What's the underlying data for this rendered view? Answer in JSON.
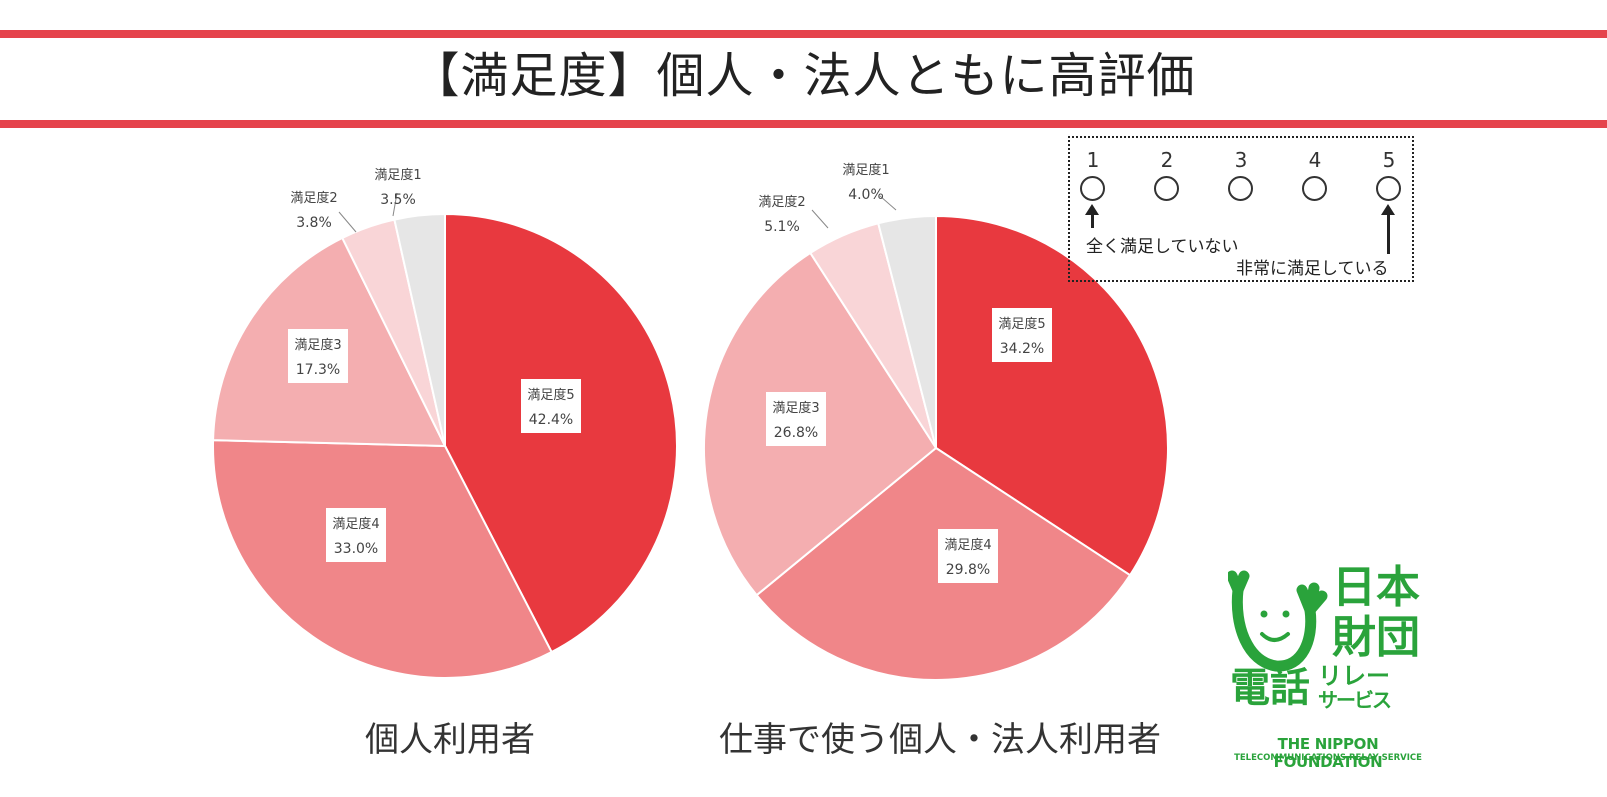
{
  "title": "【満足度】個人・法人ともに高評価",
  "chart_data": [
    {
      "type": "pie",
      "title": "個人利用者",
      "start_angle": "12 o'clock, clockwise",
      "slices": [
        {
          "label": "満足度5",
          "value": 42.4,
          "value_label": "42.4%",
          "color": "#e8393f"
        },
        {
          "label": "満足度4",
          "value": 33.0,
          "value_label": "33.0%",
          "color": "#f08689"
        },
        {
          "label": "満足度3",
          "value": 17.3,
          "value_label": "17.3%",
          "color": "#f4aeb0"
        },
        {
          "label": "満足度2",
          "value": 3.8,
          "value_label": "3.8%",
          "color": "#f9d5d7"
        },
        {
          "label": "満足度1",
          "value": 3.5,
          "value_label": "3.5%",
          "color": "#e6e6e6"
        }
      ]
    },
    {
      "type": "pie",
      "title": "仕事で使う個人・法人利用者",
      "start_angle": "12 o'clock, clockwise",
      "slices": [
        {
          "label": "満足度5",
          "value": 34.2,
          "value_label": "34.2%",
          "color": "#e8393f"
        },
        {
          "label": "満足度4",
          "value": 29.8,
          "value_label": "29.8%",
          "color": "#f08689"
        },
        {
          "label": "満足度3",
          "value": 26.8,
          "value_label": "26.8%",
          "color": "#f4aeb0"
        },
        {
          "label": "満足度2",
          "value": 5.1,
          "value_label": "5.1%",
          "color": "#f9d5d7"
        },
        {
          "label": "満足度1",
          "value": 4.0,
          "value_label": "4.0%",
          "color": "#e6e6e6"
        }
      ]
    }
  ],
  "scale_legend": {
    "numbers": [
      "1",
      "2",
      "3",
      "4",
      "5"
    ],
    "low_label": "全く満足していない",
    "high_label": "非常に満足している"
  },
  "logo": {
    "jp_lines": [
      "日本",
      "財団",
      "電話",
      "リレー",
      "サービス"
    ],
    "en_line1": "THE NIPPON FOUNDATION",
    "en_line2": "TELECOMMUNICATIONS RELAY SERVICE",
    "color": "#2aa33b"
  }
}
